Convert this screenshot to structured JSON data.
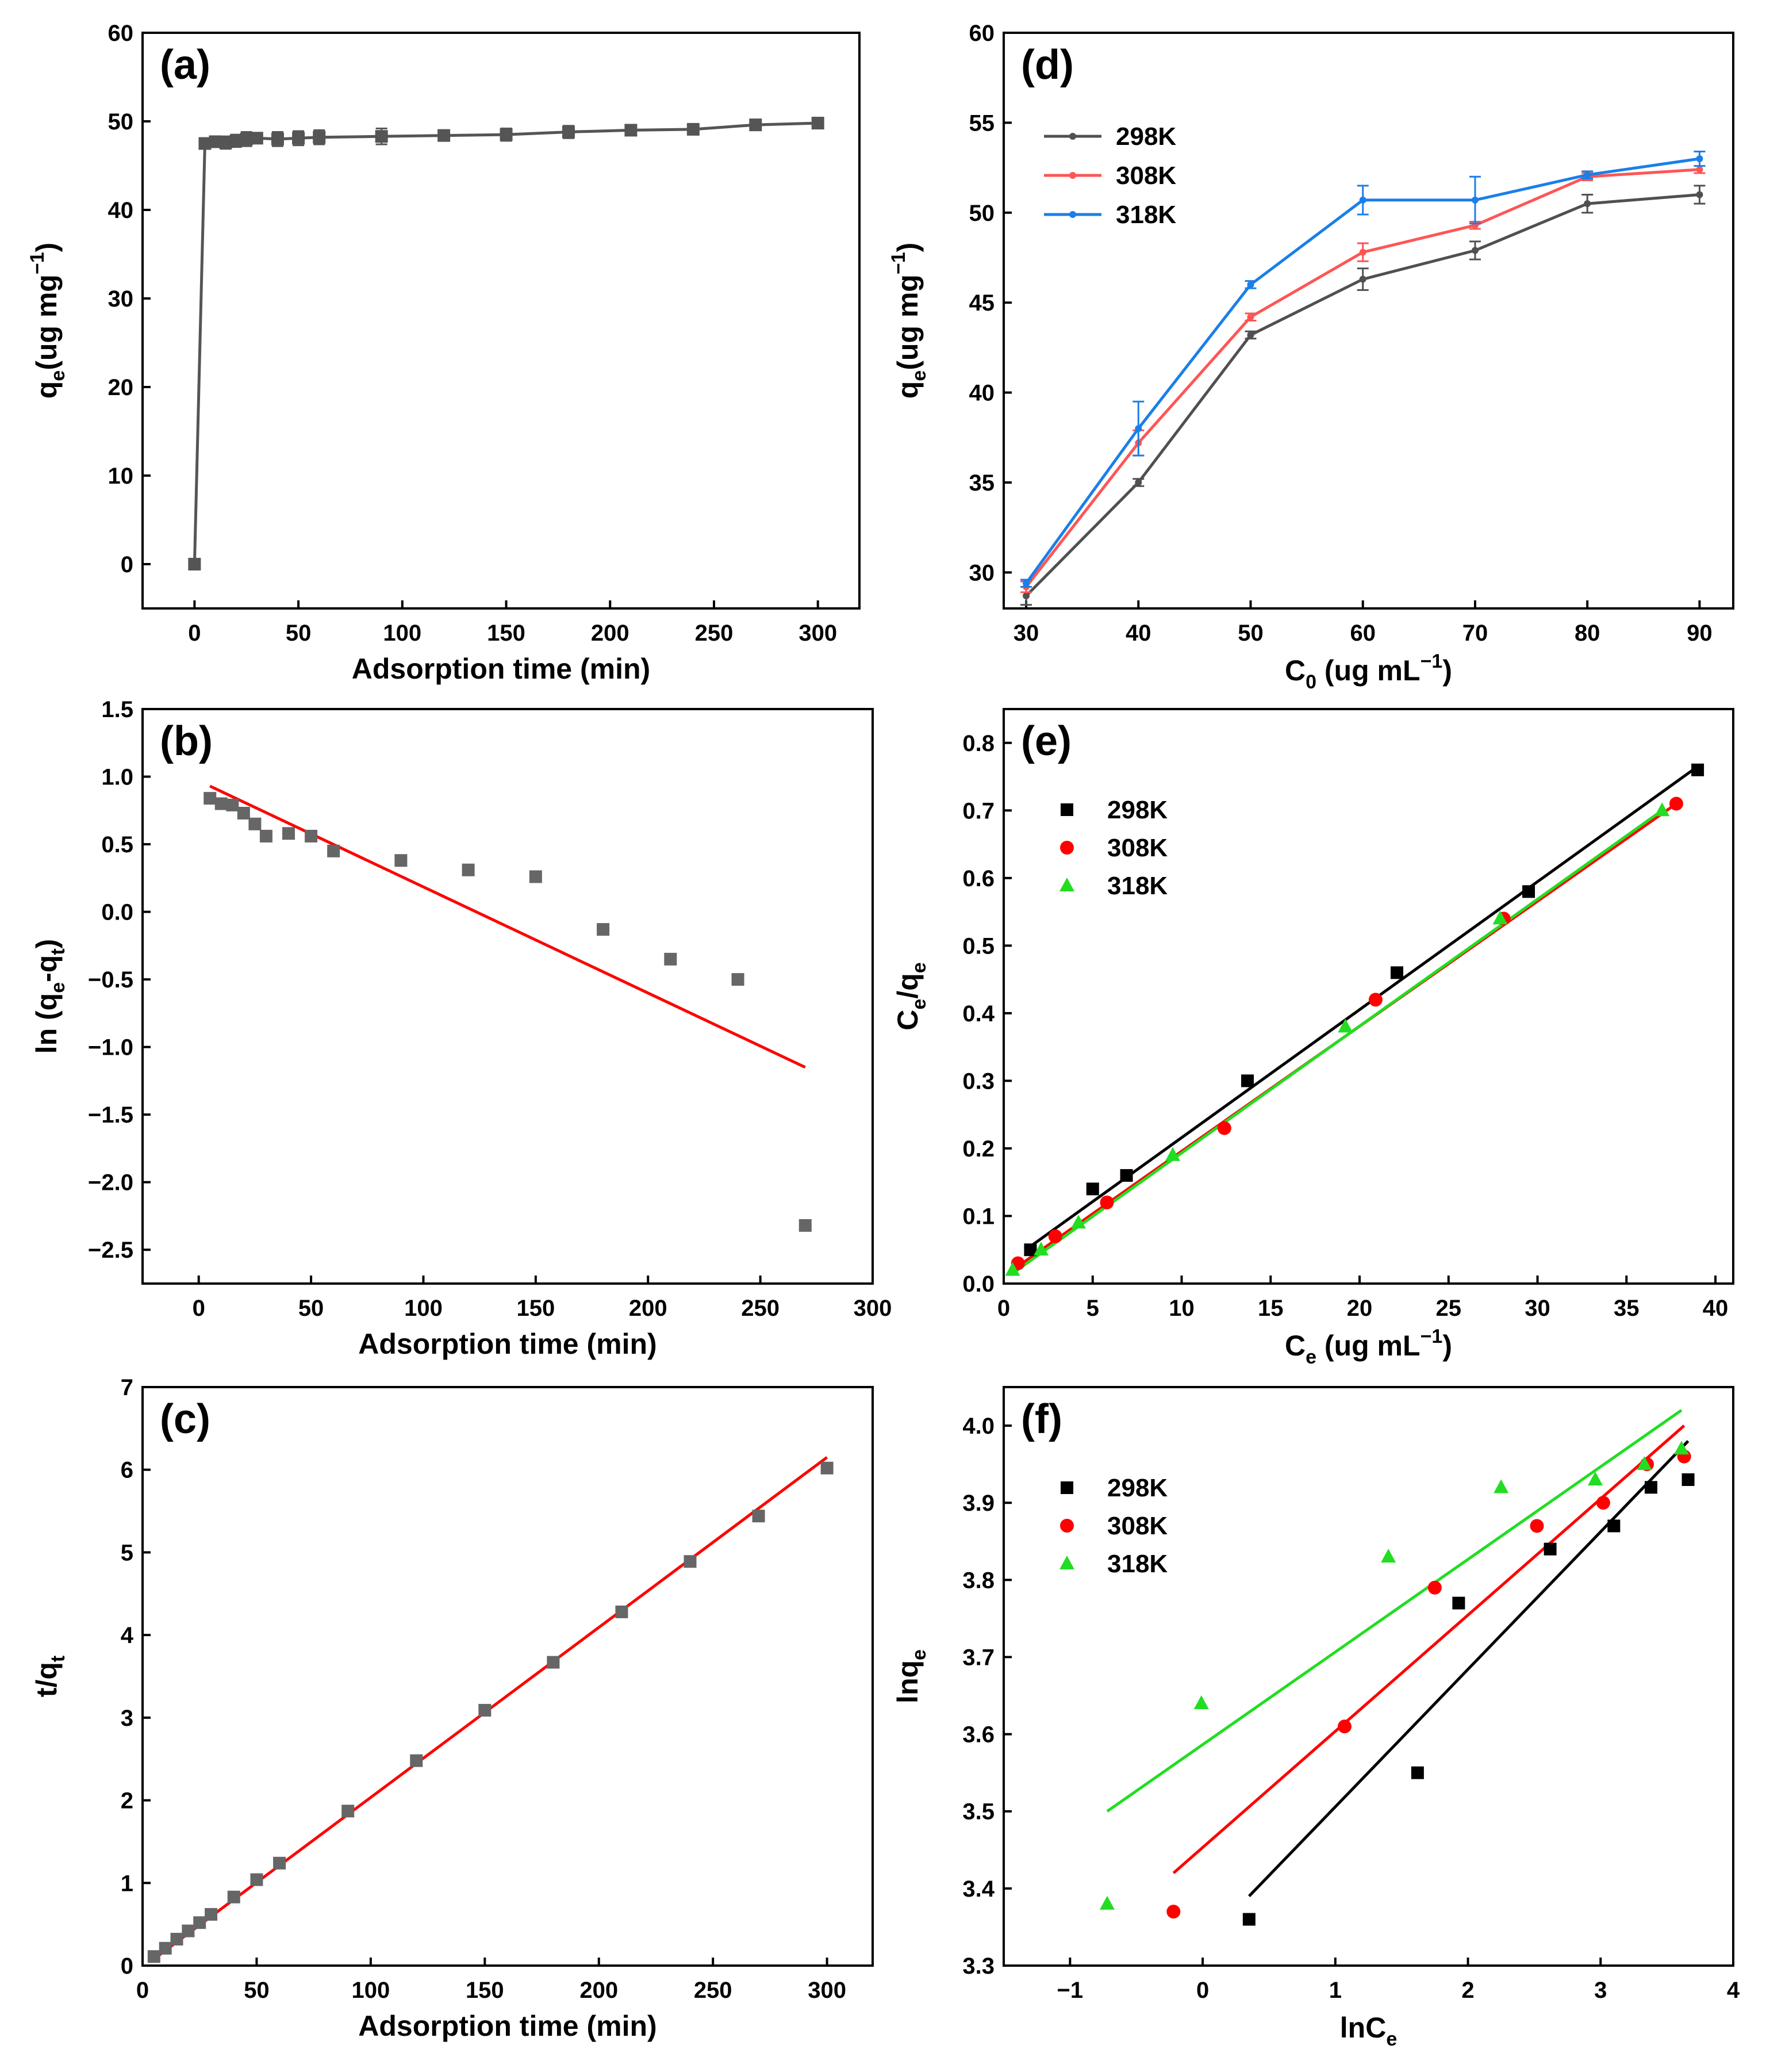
{
  "chart_data": [
    {
      "id": "a",
      "panel_label": "(a)",
      "type": "line",
      "xlabel": "Adsorption time (min)",
      "ylabel_html": "q<sub>e</sub>(ug mg<sup>-1</sup>)",
      "xlim": [
        -25,
        320
      ],
      "ylim": [
        -5,
        60
      ],
      "xticks": [
        0,
        50,
        100,
        150,
        200,
        250,
        300
      ],
      "yticks": [
        0,
        10,
        20,
        30,
        40,
        50,
        60
      ],
      "series": [
        {
          "color": "#555555",
          "marker": "square",
          "error_bars": true,
          "x": [
            0,
            5,
            10,
            15,
            20,
            25,
            30,
            40,
            50,
            60,
            90,
            120,
            150,
            180,
            210,
            240,
            270,
            300
          ],
          "y": [
            0,
            47.5,
            47.7,
            47.6,
            47.8,
            48.0,
            48.1,
            48.0,
            48.1,
            48.2,
            48.3,
            48.4,
            48.5,
            48.8,
            49.0,
            49.1,
            49.6,
            49.8
          ],
          "err": [
            0,
            0.6,
            0.6,
            0.7,
            0.7,
            0.8,
            0.6,
            0.8,
            0.8,
            0.8,
            0.9,
            0.6,
            0.7,
            0.7,
            0.3,
            0.4,
            0.6,
            0.6
          ]
        }
      ]
    },
    {
      "id": "b",
      "panel_label": "(b)",
      "type": "scatter",
      "xlabel": "Adsorption time (min)",
      "ylabel_html": "ln (q<sub>e</sub>-q<sub>t</sub>)",
      "xlim": [
        -25,
        300
      ],
      "ylim": [
        -2.75,
        1.5
      ],
      "xticks": [
        0,
        50,
        100,
        150,
        200,
        250,
        300
      ],
      "yticks": [
        -2.5,
        -2.0,
        -1.5,
        -1.0,
        -0.5,
        0.0,
        0.5,
        1.0,
        1.5
      ],
      "ytick_decimals": 1,
      "series": [
        {
          "color": "#666666",
          "marker": "square",
          "x": [
            5,
            10,
            15,
            20,
            25,
            30,
            40,
            50,
            60,
            90,
            120,
            150,
            180,
            210,
            240,
            270
          ],
          "y": [
            0.84,
            0.8,
            0.79,
            0.73,
            0.65,
            0.56,
            0.58,
            0.56,
            0.45,
            0.38,
            0.31,
            0.26,
            -0.13,
            -0.35,
            -0.5,
            -2.32
          ]
        }
      ],
      "fits": [
        {
          "color": "#ff0000",
          "x": [
            5,
            270
          ],
          "y": [
            0.93,
            -1.15
          ]
        }
      ]
    },
    {
      "id": "c",
      "panel_label": "(c)",
      "type": "scatter",
      "xlabel": "Adsorption time (min)",
      "ylabel_html": "t/q<sub>t</sub>",
      "xlim": [
        0,
        320
      ],
      "ylim": [
        0,
        7
      ],
      "xticks": [
        0,
        50,
        100,
        150,
        200,
        250,
        300
      ],
      "yticks": [
        0,
        1,
        2,
        3,
        4,
        5,
        6,
        7
      ],
      "series": [
        {
          "color": "#666666",
          "marker": "square",
          "x": [
            5,
            10,
            15,
            20,
            25,
            30,
            40,
            50,
            60,
            90,
            120,
            150,
            180,
            210,
            240,
            270,
            300
          ],
          "y": [
            0.11,
            0.21,
            0.32,
            0.42,
            0.52,
            0.62,
            0.83,
            1.04,
            1.24,
            1.87,
            2.48,
            3.09,
            3.67,
            4.28,
            4.89,
            5.44,
            6.02
          ]
        }
      ],
      "fits": [
        {
          "color": "#ff0000",
          "x": [
            5,
            300
          ],
          "y": [
            0.08,
            6.15
          ]
        }
      ]
    },
    {
      "id": "d",
      "panel_label": "(d)",
      "type": "line",
      "xlabel_html": "C<sub>0</sub> (ug mL<sup>-1</sup>)",
      "ylabel_html": "q<sub>e</sub>(ug mg<sup>-1</sup>)",
      "xlim": [
        28,
        93
      ],
      "ylim": [
        28,
        60
      ],
      "xticks": [
        30,
        40,
        50,
        60,
        70,
        80,
        90
      ],
      "yticks": [
        30,
        35,
        40,
        45,
        50,
        55,
        60
      ],
      "legend": "top-left",
      "series": [
        {
          "name": "298K",
          "color": "#505050",
          "marker": "dot",
          "error_bars": true,
          "x": [
            30,
            40,
            50,
            60,
            70,
            80,
            90
          ],
          "y": [
            28.7,
            35.0,
            43.2,
            46.3,
            47.9,
            50.5,
            51.0
          ],
          "err": [
            0.5,
            0.2,
            0.2,
            0.6,
            0.5,
            0.5,
            0.5
          ]
        },
        {
          "name": "308K",
          "color": "#ff5555",
          "marker": "dot",
          "error_bars": true,
          "x": [
            30,
            40,
            50,
            60,
            70,
            80,
            90
          ],
          "y": [
            29.2,
            37.2,
            44.2,
            47.8,
            49.3,
            52.0,
            52.4
          ],
          "err": [
            0.3,
            0.7,
            0.2,
            0.5,
            0.2,
            0.2,
            0.2
          ]
        },
        {
          "name": "318K",
          "color": "#1a7fe8",
          "marker": "dot",
          "error_bars": true,
          "x": [
            30,
            40,
            50,
            60,
            70,
            80,
            90
          ],
          "y": [
            29.4,
            38.0,
            46.0,
            50.7,
            50.7,
            52.1,
            53.0
          ],
          "err": [
            0.2,
            1.5,
            0.2,
            0.8,
            1.3,
            0.2,
            0.4
          ]
        }
      ]
    },
    {
      "id": "e",
      "panel_label": "(e)",
      "type": "scatter",
      "xlabel_html": "C<sub>e</sub> (ug mL<sup>-1</sup>)",
      "ylabel_html": "C<sub>e</sub>/q<sub>e</sub>",
      "xlim": [
        0,
        41
      ],
      "ylim": [
        0,
        0.85
      ],
      "xticks": [
        0,
        5,
        10,
        15,
        20,
        25,
        30,
        35,
        40
      ],
      "yticks": [
        0.0,
        0.1,
        0.2,
        0.3,
        0.4,
        0.5,
        0.6,
        0.7,
        0.8
      ],
      "ytick_decimals": 1,
      "legend": "top-left",
      "series": [
        {
          "name": "298K",
          "color": "#000000",
          "marker": "square",
          "x": [
            1.5,
            5.0,
            6.9,
            13.7,
            22.1,
            29.5,
            39.0
          ],
          "y": [
            0.05,
            0.14,
            0.16,
            0.3,
            0.46,
            0.58,
            0.76
          ]
        },
        {
          "name": "308K",
          "color": "#ff0000",
          "marker": "circle",
          "x": [
            0.8,
            2.9,
            5.8,
            12.4,
            20.9,
            28.1,
            37.8
          ],
          "y": [
            0.03,
            0.07,
            0.12,
            0.23,
            0.42,
            0.54,
            0.71
          ]
        },
        {
          "name": "318K",
          "color": "#22dd22",
          "marker": "triangle",
          "x": [
            0.5,
            2.1,
            4.2,
            9.5,
            19.2,
            27.9,
            37.0
          ],
          "y": [
            0.02,
            0.05,
            0.09,
            0.19,
            0.38,
            0.54,
            0.7
          ]
        }
      ],
      "fits": [
        {
          "color": "#000000",
          "x": [
            1.5,
            39.0
          ],
          "y": [
            0.055,
            0.765
          ]
        },
        {
          "color": "#ff0000",
          "x": [
            0.5,
            37.8
          ],
          "y": [
            0.02,
            0.71
          ]
        },
        {
          "color": "#22dd22",
          "x": [
            0.5,
            37.0
          ],
          "y": [
            0.015,
            0.7
          ]
        }
      ]
    },
    {
      "id": "f",
      "panel_label": "(f)",
      "type": "scatter",
      "xlabel_html": "lnC<sub>e</sub>",
      "ylabel_html": "lnq<sub>e</sub>",
      "xlim": [
        -1.5,
        4.0
      ],
      "ylim": [
        3.3,
        4.05
      ],
      "xticks": [
        -1,
        0,
        1,
        2,
        3,
        4
      ],
      "yticks": [
        3.3,
        3.4,
        3.5,
        3.6,
        3.7,
        3.8,
        3.9,
        4.0
      ],
      "ytick_decimals": 1,
      "legend": "top-left",
      "series": [
        {
          "name": "298K",
          "color": "#000000",
          "marker": "square",
          "x": [
            0.35,
            1.62,
            1.93,
            2.62,
            3.1,
            3.38,
            3.66
          ],
          "y": [
            3.36,
            3.55,
            3.77,
            3.84,
            3.87,
            3.92,
            3.93
          ]
        },
        {
          "name": "308K",
          "color": "#ff0000",
          "marker": "circle",
          "x": [
            -0.22,
            1.07,
            1.75,
            2.52,
            3.02,
            3.35,
            3.63
          ],
          "y": [
            3.37,
            3.61,
            3.79,
            3.87,
            3.9,
            3.95,
            3.96
          ]
        },
        {
          "name": "318K",
          "color": "#22dd22",
          "marker": "triangle",
          "x": [
            -0.72,
            -0.01,
            1.4,
            2.25,
            2.96,
            3.33,
            3.61
          ],
          "y": [
            3.38,
            3.64,
            3.83,
            3.92,
            3.93,
            3.95,
            3.97
          ]
        }
      ],
      "fits": [
        {
          "color": "#000000",
          "x": [
            0.35,
            3.66
          ],
          "y": [
            3.39,
            3.98
          ]
        },
        {
          "color": "#ff0000",
          "x": [
            -0.22,
            3.63
          ],
          "y": [
            3.42,
            4.0
          ]
        },
        {
          "color": "#22dd22",
          "x": [
            -0.72,
            3.61
          ],
          "y": [
            3.5,
            4.02
          ]
        }
      ]
    }
  ]
}
